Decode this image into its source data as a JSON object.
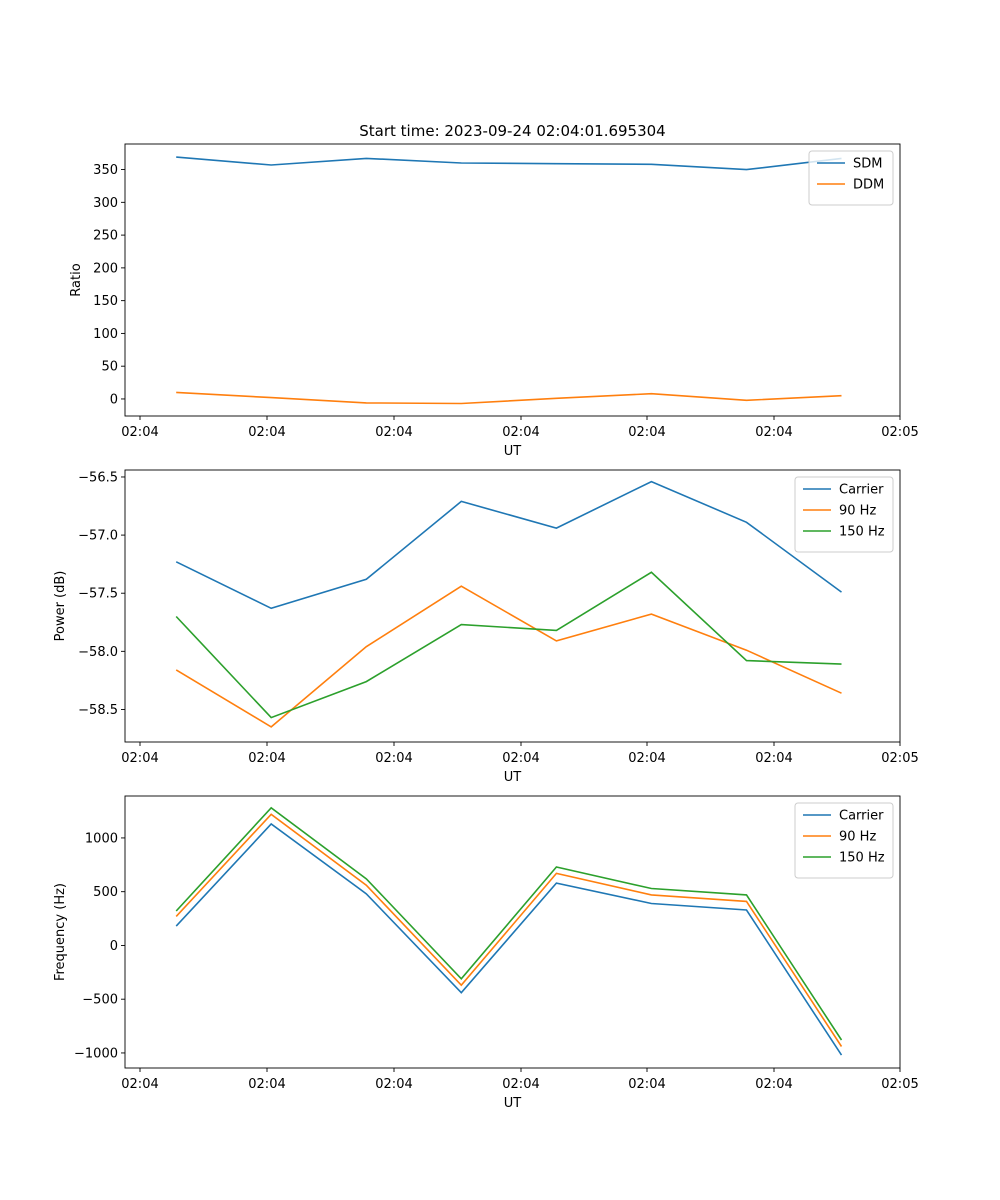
{
  "title": "Start time: 2023-09-24 02:04:01.695304",
  "x_tick_labels": [
    "02:04",
    "02:04",
    "02:04",
    "02:04",
    "02:04",
    "02:04",
    "02:05"
  ],
  "chart_data": [
    {
      "type": "line",
      "xlabel": "UT",
      "ylabel": "Ratio",
      "ylim": [
        -26,
        389
      ],
      "yticks": [
        0,
        50,
        100,
        150,
        200,
        250,
        300,
        350
      ],
      "ytick_labels": [
        "0",
        "50",
        "100",
        "150",
        "200",
        "250",
        "300",
        "350"
      ],
      "legend_position": "top-right",
      "x_seconds": [
        1.95,
        2.6,
        3.25,
        3.9,
        4.55,
        5.2,
        5.85,
        6.5
      ],
      "series": [
        {
          "name": "SDM",
          "color": "#1f77b4",
          "values": [
            369,
            357,
            367,
            360,
            359,
            358,
            350,
            367
          ]
        },
        {
          "name": "DDM",
          "color": "#ff7f0e",
          "values": [
            10,
            2,
            -6,
            -7,
            1,
            8,
            -2,
            5
          ]
        }
      ]
    },
    {
      "type": "line",
      "xlabel": "UT",
      "ylabel": "Power (dB)",
      "ylim": [
        -58.78,
        -56.44
      ],
      "yticks": [
        -58.5,
        -58.0,
        -57.5,
        -57.0,
        -56.5
      ],
      "ytick_labels": [
        "−58.5",
        "−58.0",
        "−57.5",
        "−57.0",
        "−56.5"
      ],
      "legend_position": "top-right",
      "x_seconds": [
        1.95,
        2.6,
        3.25,
        3.9,
        4.55,
        5.2,
        5.85,
        6.5
      ],
      "series": [
        {
          "name": "Carrier",
          "color": "#1f77b4",
          "values": [
            -57.23,
            -57.63,
            -57.38,
            -56.71,
            -56.94,
            -56.54,
            -56.89,
            -57.49
          ]
        },
        {
          "name": "90 Hz",
          "color": "#ff7f0e",
          "values": [
            -58.16,
            -58.65,
            -57.96,
            -57.44,
            -57.91,
            -57.68,
            -57.99,
            -58.36
          ]
        },
        {
          "name": "150 Hz",
          "color": "#2ca02c",
          "values": [
            -57.7,
            -58.57,
            -58.26,
            -57.77,
            -57.82,
            -57.32,
            -58.08,
            -58.11
          ]
        }
      ]
    },
    {
      "type": "line",
      "xlabel": "UT",
      "ylabel": "Frequency (Hz)",
      "ylim": [
        -1140,
        1390
      ],
      "yticks": [
        -1000,
        -500,
        0,
        500,
        1000
      ],
      "ytick_labels": [
        "−1000",
        "−500",
        "0",
        "500",
        "1000"
      ],
      "legend_position": "top-right",
      "x_seconds": [
        1.95,
        2.6,
        3.25,
        3.9,
        4.55,
        5.2,
        5.85,
        6.5
      ],
      "series": [
        {
          "name": "Carrier",
          "color": "#1f77b4",
          "values": [
            180,
            1130,
            480,
            -440,
            580,
            390,
            330,
            -1020
          ]
        },
        {
          "name": "90 Hz",
          "color": "#ff7f0e",
          "values": [
            270,
            1220,
            560,
            -370,
            670,
            470,
            410,
            -940
          ]
        },
        {
          "name": "150 Hz",
          "color": "#2ca02c",
          "values": [
            320,
            1280,
            620,
            -310,
            730,
            530,
            470,
            -880
          ]
        }
      ]
    }
  ]
}
